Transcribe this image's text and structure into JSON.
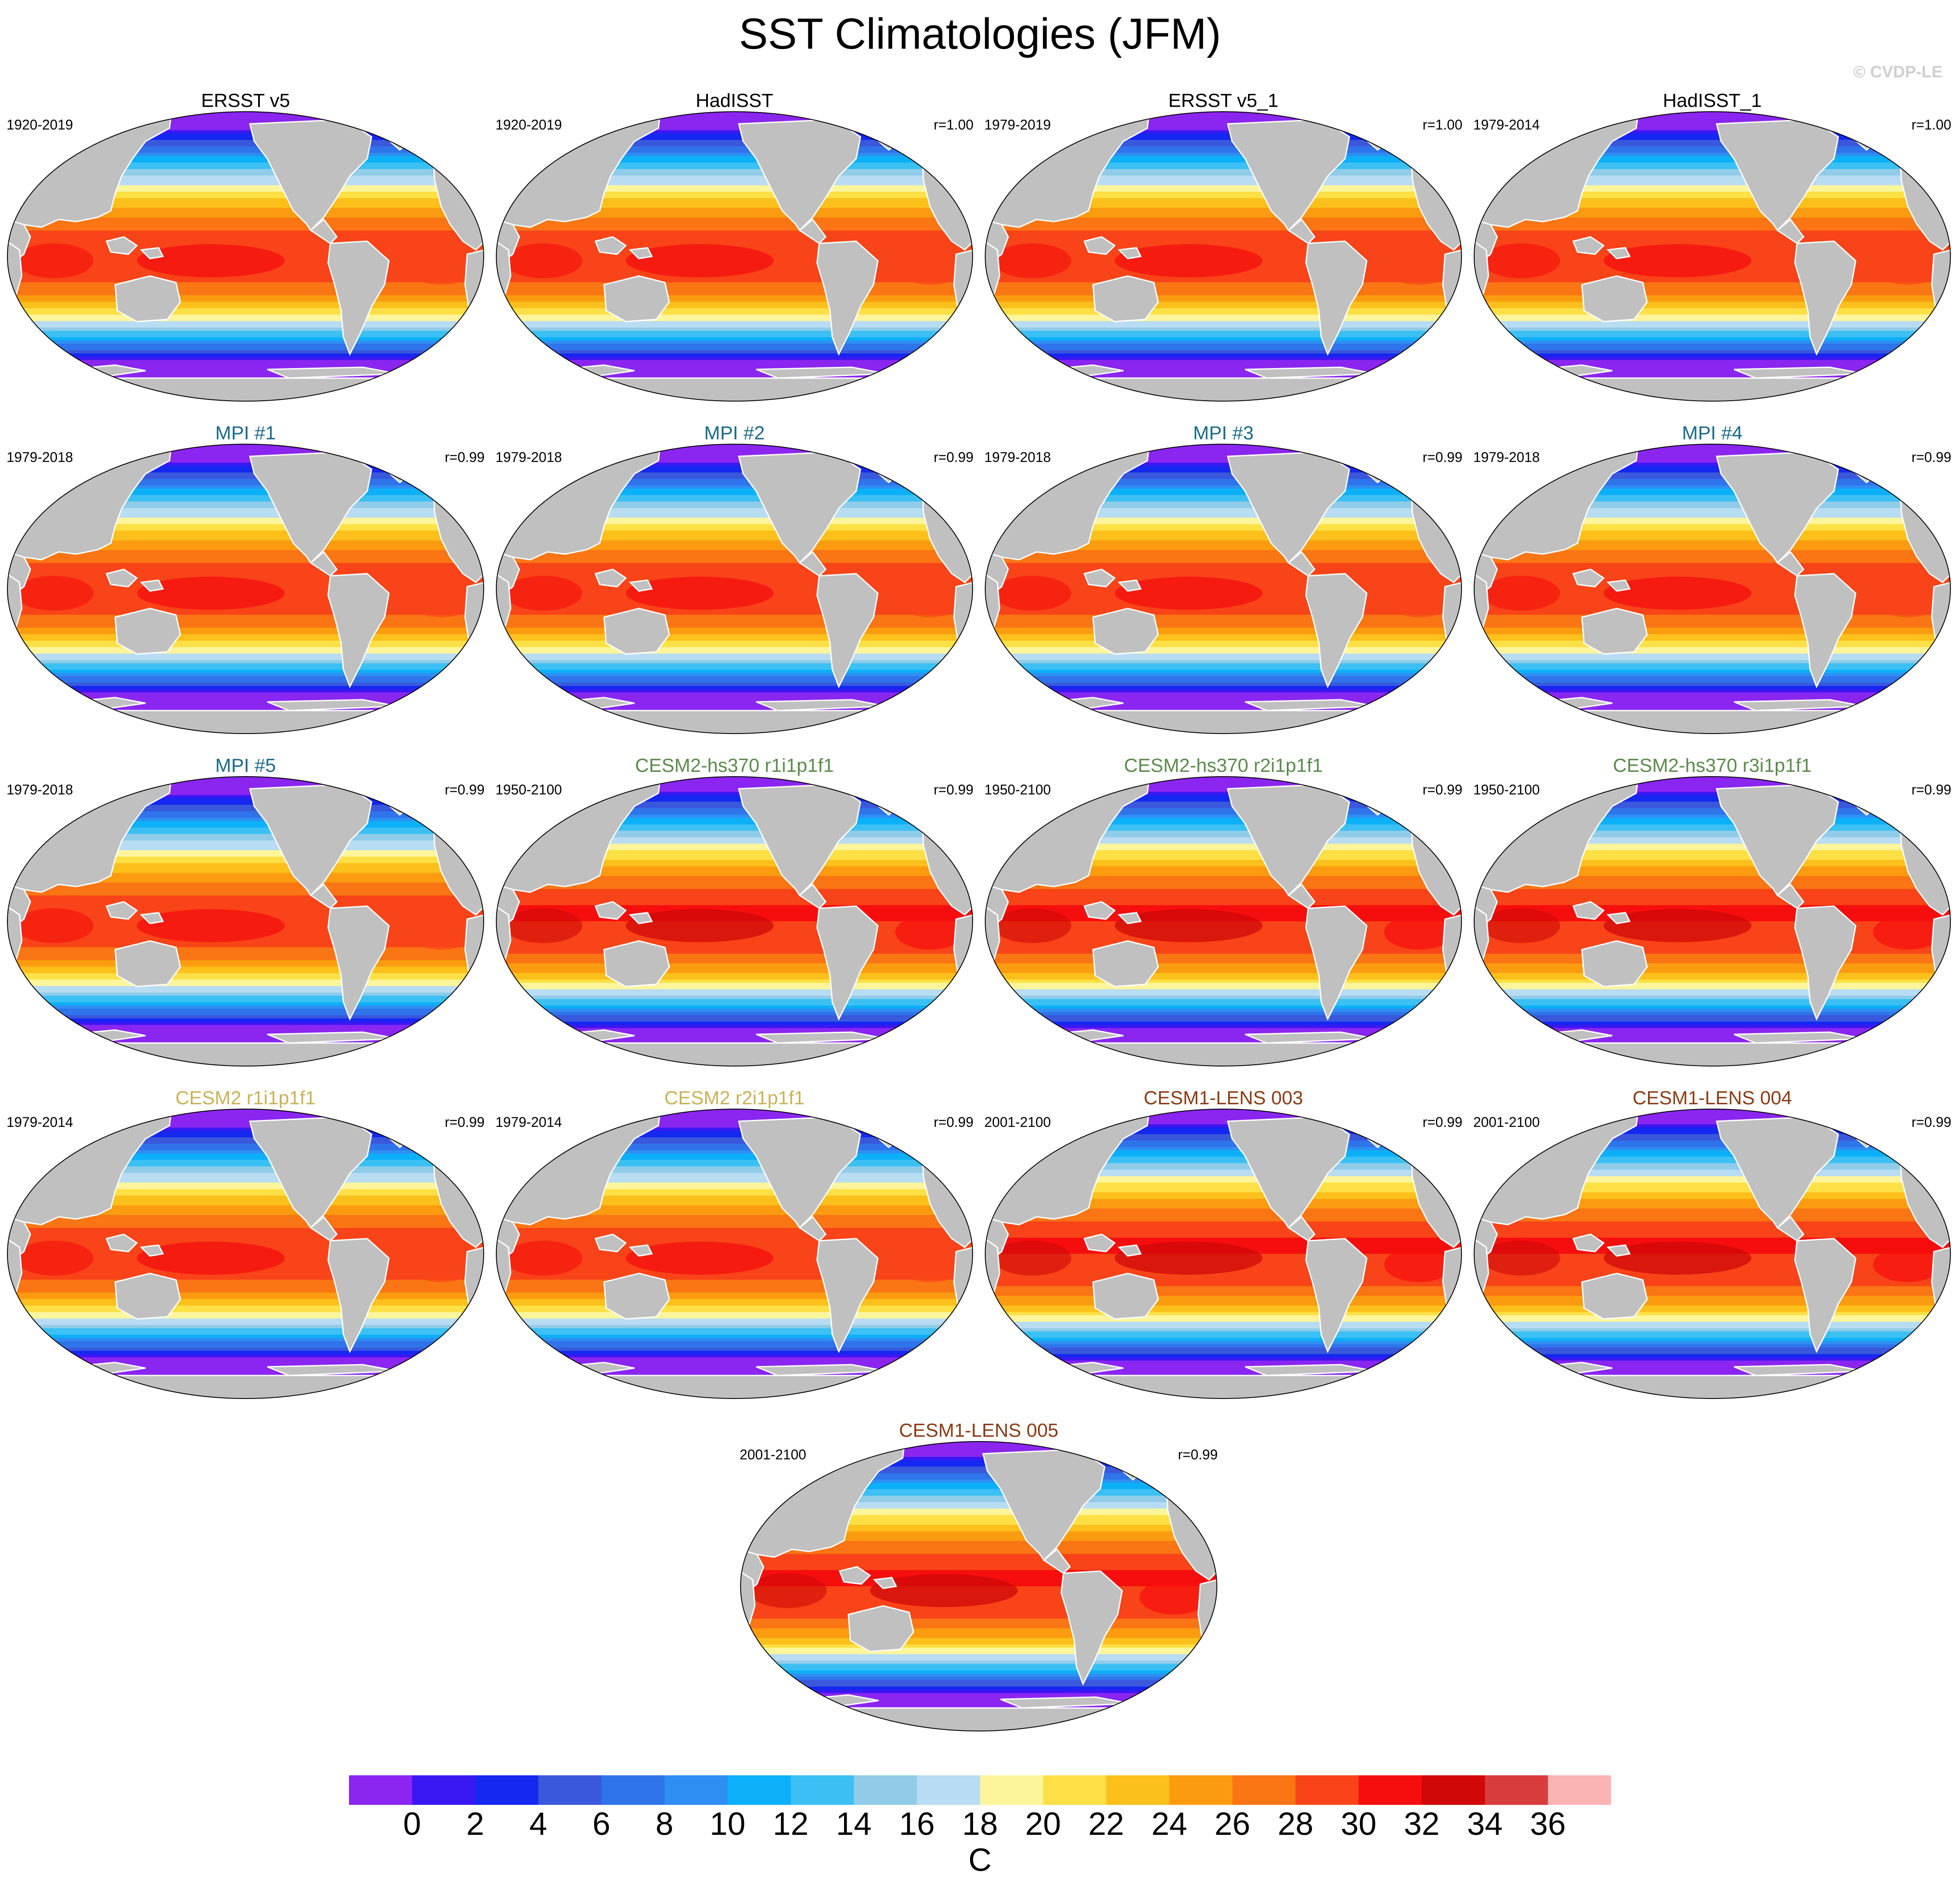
{
  "title": "SST Climatologies (JFM)",
  "copyright": "© CVDP-LE",
  "colors": {
    "land": "#c0c0c0",
    "coastline": "#ffffff",
    "title_obs": "#000000",
    "title_mpi": "#1a6a86",
    "title_cesm2_hs370": "#5c8a4c",
    "title_cesm2": "#c8b25a",
    "title_cesm1": "#8a3c16"
  },
  "panels": [
    {
      "title": "ERSST v5",
      "period": "1920-2019",
      "r": "",
      "group": "obs",
      "warm": 0
    },
    {
      "title": "HadISST",
      "period": "1920-2019",
      "r": "r=1.00",
      "group": "obs",
      "warm": 0
    },
    {
      "title": "ERSST v5_1",
      "period": "1979-2019",
      "r": "r=1.00",
      "group": "obs",
      "warm": 0
    },
    {
      "title": "HadISST_1",
      "period": "1979-2014",
      "r": "r=1.00",
      "group": "obs",
      "warm": 0
    },
    {
      "title": "MPI #1",
      "period": "1979-2018",
      "r": "r=0.99",
      "group": "mpi",
      "warm": 0
    },
    {
      "title": "MPI #2",
      "period": "1979-2018",
      "r": "r=0.99",
      "group": "mpi",
      "warm": 0
    },
    {
      "title": "MPI #3",
      "period": "1979-2018",
      "r": "r=0.99",
      "group": "mpi",
      "warm": 0
    },
    {
      "title": "MPI #4",
      "period": "1979-2018",
      "r": "r=0.99",
      "group": "mpi",
      "warm": 0
    },
    {
      "title": "MPI #5",
      "period": "1979-2018",
      "r": "r=0.99",
      "group": "mpi",
      "warm": 0
    },
    {
      "title": "CESM2-hs370 r1i1p1f1",
      "period": "1950-2100",
      "r": "r=0.99",
      "group": "cesm2_hs370",
      "warm": 1
    },
    {
      "title": "CESM2-hs370 r2i1p1f1",
      "period": "1950-2100",
      "r": "r=0.99",
      "group": "cesm2_hs370",
      "warm": 1
    },
    {
      "title": "CESM2-hs370 r3i1p1f1",
      "period": "1950-2100",
      "r": "r=0.99",
      "group": "cesm2_hs370",
      "warm": 1
    },
    {
      "title": "CESM2 r1i1p1f1",
      "period": "1979-2014",
      "r": "r=0.99",
      "group": "cesm2",
      "warm": 0
    },
    {
      "title": "CESM2 r2i1p1f1",
      "period": "1979-2014",
      "r": "r=0.99",
      "group": "cesm2",
      "warm": 0
    },
    {
      "title": "CESM1-LENS 003",
      "period": "2001-2100",
      "r": "r=0.99",
      "group": "cesm1",
      "warm": 1
    },
    {
      "title": "CESM1-LENS 004",
      "period": "2001-2100",
      "r": "r=0.99",
      "group": "cesm1",
      "warm": 1
    },
    {
      "title": "CESM1-LENS 005",
      "period": "2001-2100",
      "r": "r=0.99",
      "group": "cesm1",
      "warm": 1
    }
  ],
  "colorbar": {
    "unit": "C",
    "levels": [
      "0",
      "2",
      "4",
      "6",
      "8",
      "10",
      "12",
      "14",
      "16",
      "18",
      "20",
      "22",
      "24",
      "26",
      "28",
      "30",
      "32",
      "34",
      "36"
    ],
    "colors": [
      "#8a26f0",
      "#3a18f4",
      "#1428f0",
      "#3a58dc",
      "#2f74ea",
      "#2f8ef2",
      "#0cb0f8",
      "#3cc0f4",
      "#90cce8",
      "#b8dcf2",
      "#fdf59c",
      "#fde045",
      "#fcc01c",
      "#fb9c10",
      "#fa7514",
      "#f84418",
      "#f60e0e",
      "#d00808",
      "#d83c3c",
      "#fbb4b4"
    ]
  }
}
